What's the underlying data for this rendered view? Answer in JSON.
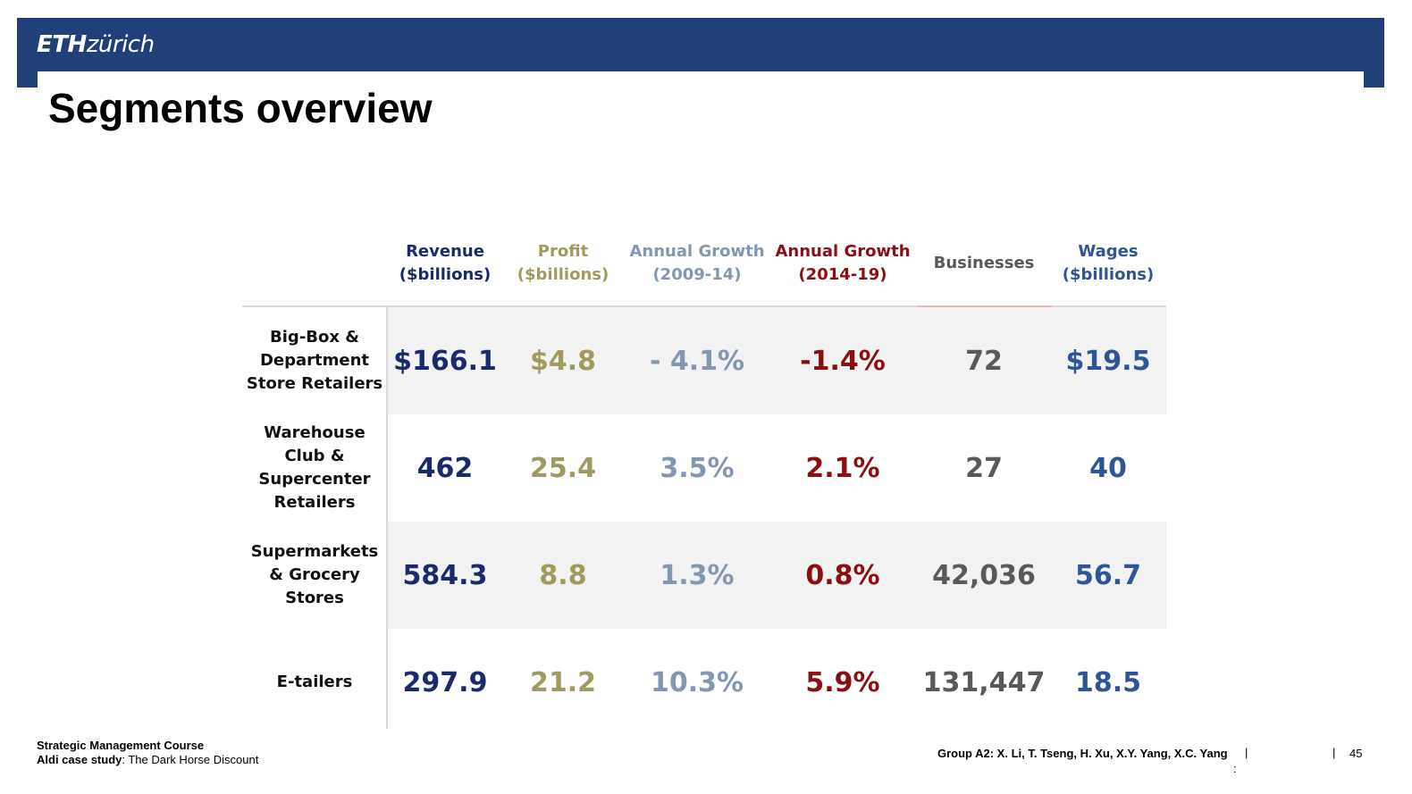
{
  "header": {
    "logo_eth": "ETH",
    "logo_zurich": "zürich"
  },
  "title": "Segments overview",
  "table": {
    "columns": [
      {
        "line1": "Revenue",
        "line2": "($billions)",
        "color": "#1b2a6b"
      },
      {
        "line1": "Profit",
        "line2": "($billions)",
        "color": "#a09a5f"
      },
      {
        "line1": "Annual Growth",
        "line2": "(2009-14)",
        "color": "#8497b0"
      },
      {
        "line1": "Annual Growth",
        "line2": "(2014-19)",
        "color": "#8b0e12"
      },
      {
        "line1": "Businesses",
        "line2": "",
        "color": "#595959"
      },
      {
        "line1": "Wages",
        "line2": "($billions)",
        "color": "#2e5597"
      }
    ],
    "rows": [
      {
        "label_lines": [
          "Big-Box &",
          "Department",
          "Store Retailers"
        ],
        "values": [
          "$166.1",
          "$4.8",
          "- 4.1%",
          "-1.4%",
          "72",
          "$19.5"
        ]
      },
      {
        "label_lines": [
          "Warehouse",
          "Club &",
          "Supercenter",
          "Retailers"
        ],
        "values": [
          "462",
          "25.4",
          "3.5%",
          "2.1%",
          "27",
          "40"
        ]
      },
      {
        "label_lines": [
          "Supermarkets",
          "& Grocery",
          "Stores"
        ],
        "values": [
          "584.3",
          "8.8",
          "1.3%",
          "0.8%",
          "42,036",
          "56.7"
        ]
      },
      {
        "label_lines": [
          "E-tailers"
        ],
        "values": [
          "297.9",
          "21.2",
          "10.3%",
          "5.9%",
          "131,447",
          "18.5"
        ]
      }
    ]
  },
  "footer": {
    "course": "Strategic Management Course",
    "case_bold": "Aldi case study",
    "case_rest": ": The Dark Horse Discount",
    "group": "Group A2: X. Li, T. Tseng, H. Xu, X.Y. Yang, X.C. Yang",
    "sep_bar": "|",
    "sep_colon": ":",
    "page": "45"
  },
  "colors": {
    "header_bar": "#21407a",
    "row_shade": "#f2f2f2"
  }
}
